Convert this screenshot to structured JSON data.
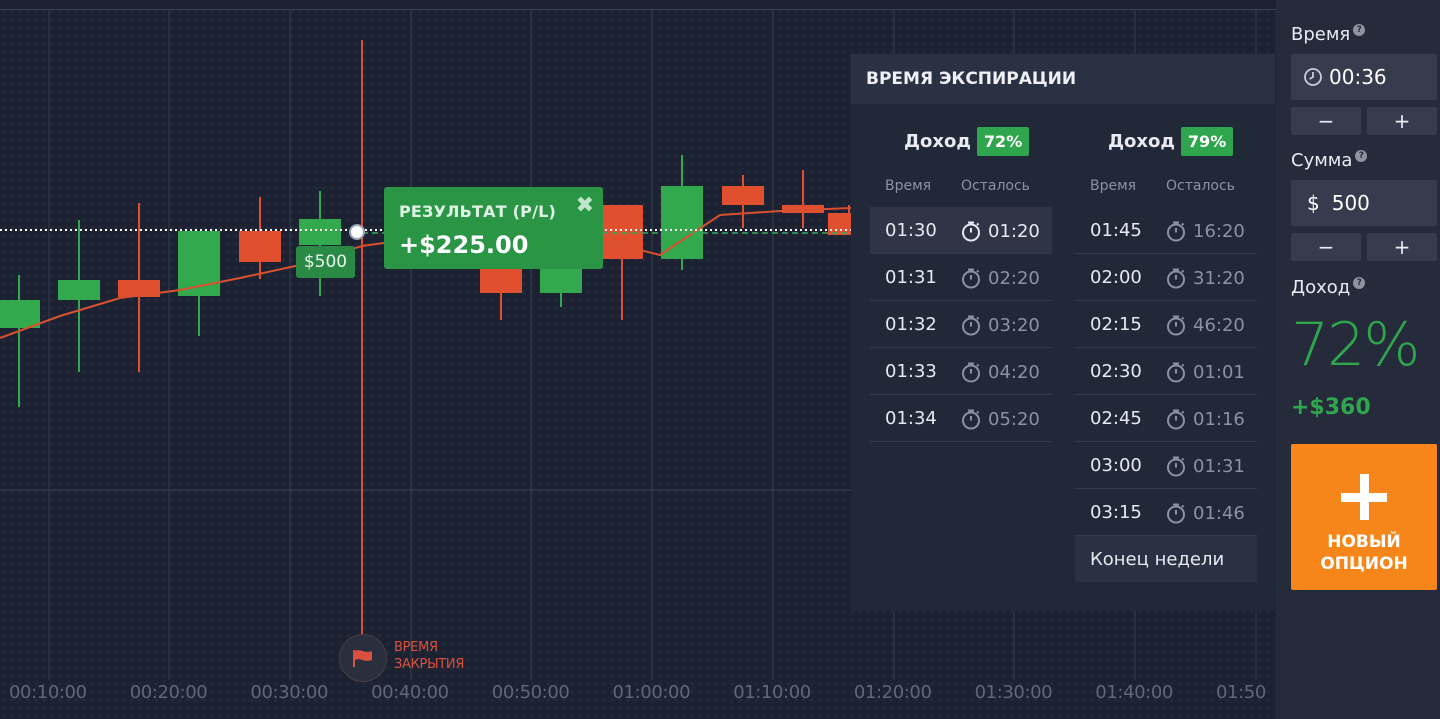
{
  "chart": {
    "price_tag": "$500",
    "close_label_line1": "ВРЕМЯ",
    "close_label_line2": "ЗАКРЫТИЯ",
    "time_labels": [
      "00:10:00",
      "00:20:00",
      "00:30:00",
      "00:40:00",
      "00:50:00",
      "01:00:00",
      "01:10:00",
      "01:20:00",
      "01:30:00",
      "01:40:00",
      "01:50"
    ],
    "colors": {
      "up": "#33a94e",
      "down": "#e0502f",
      "background": "#1c2232"
    }
  },
  "result": {
    "title": "РЕЗУЛЬТАТ (P/L)",
    "value": "+$225.00"
  },
  "expiration": {
    "title": "ВРЕМЯ ЭКСПИРАЦИИ",
    "col_time": "Время",
    "col_left": "Осталось",
    "income_label": "Доход",
    "left": {
      "badge": "72%",
      "rows": [
        {
          "time": "01:30",
          "left": "01:20"
        },
        {
          "time": "01:31",
          "left": "02:20"
        },
        {
          "time": "01:32",
          "left": "03:20"
        },
        {
          "time": "01:33",
          "left": "04:20"
        },
        {
          "time": "01:34",
          "left": "05:20"
        }
      ]
    },
    "right": {
      "badge": "79%",
      "rows": [
        {
          "time": "01:45",
          "left": "16:20"
        },
        {
          "time": "02:00",
          "left": "31:20"
        },
        {
          "time": "02:15",
          "left": "46:20"
        },
        {
          "time": "02:30",
          "left": "01:01"
        },
        {
          "time": "02:45",
          "left": "01:16"
        },
        {
          "time": "03:00",
          "left": "01:31"
        },
        {
          "time": "03:15",
          "left": "01:46"
        }
      ],
      "week": "Конец недели"
    }
  },
  "sidebar": {
    "time_label": "Время",
    "time_value": "00:36",
    "amount_label": "Сумма",
    "amount_currency": "$",
    "amount_value": "500",
    "minus": "−",
    "plus": "+",
    "income_label": "Доход",
    "income_pct": "72%",
    "profit": "+$360",
    "new_option_line1": "НОВЫЙ",
    "new_option_line2": "ОПЦИОН",
    "accent": "#f7861a"
  }
}
